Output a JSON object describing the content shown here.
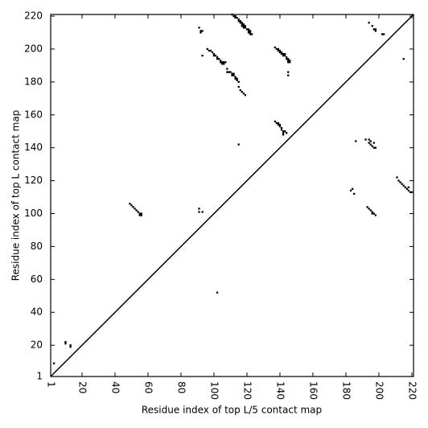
{
  "chart_data": {
    "type": "scatter",
    "xlabel": "Residue index of top L/5 contact map",
    "ylabel": "Residue index of top L contact map",
    "xlim": [
      1,
      221
    ],
    "ylim": [
      1,
      221
    ],
    "xticks": [
      1,
      20,
      40,
      60,
      80,
      100,
      120,
      140,
      160,
      180,
      200,
      220
    ],
    "yticks": [
      1,
      20,
      40,
      60,
      80,
      100,
      120,
      140,
      160,
      180,
      200,
      220
    ],
    "color": "#000000",
    "line": {
      "x": [
        1,
        221
      ],
      "y": [
        1,
        221
      ]
    },
    "points": {
      "x": [
        3,
        10,
        10,
        13,
        13,
        102,
        49,
        50,
        51,
        52,
        53,
        54,
        55,
        56,
        55,
        56,
        91,
        91,
        93,
        91,
        92,
        93,
        92,
        93,
        96,
        97,
        98,
        99,
        100,
        100,
        101,
        102,
        102,
        103,
        104,
        104,
        105,
        106,
        105,
        106,
        107,
        108,
        108,
        109,
        110,
        111,
        112,
        111,
        112,
        113,
        113,
        114,
        114,
        115,
        115,
        116,
        117,
        118,
        119,
        111,
        112,
        113,
        113,
        114,
        115,
        115,
        116,
        116,
        117,
        117,
        118,
        118,
        117,
        119,
        118,
        119,
        120,
        121,
        121,
        122,
        121,
        122,
        122,
        123,
        115,
        137,
        138,
        139,
        139,
        140,
        140,
        141,
        141,
        142,
        143,
        142,
        143,
        144,
        144,
        145,
        145,
        146,
        145,
        146,
        145,
        145,
        137,
        138,
        139,
        139,
        140,
        140,
        141,
        141,
        142,
        143,
        142,
        142,
        144,
        186,
        192,
        194,
        194,
        195,
        196,
        197,
        197,
        198,
        195,
        183,
        184,
        185,
        193,
        194,
        195,
        196,
        196,
        197,
        198,
        211,
        212,
        213,
        214,
        215,
        216,
        217,
        218,
        218,
        219,
        220,
        194,
        196,
        197,
        198,
        198,
        202,
        203,
        215
      ],
      "y": [
        9,
        21,
        22,
        19,
        20,
        52,
        106,
        105,
        104,
        103,
        102,
        101,
        100,
        100,
        99,
        99,
        103,
        101,
        101,
        213,
        211,
        211,
        210,
        196,
        200,
        199,
        199,
        198,
        197,
        196,
        196,
        195,
        194,
        194,
        193,
        192,
        192,
        192,
        191,
        191,
        192,
        188,
        186,
        186,
        186,
        185,
        185,
        184,
        184,
        183,
        182,
        182,
        181,
        180,
        177,
        175,
        174,
        173,
        172,
        221,
        220,
        220,
        219,
        219,
        218,
        217,
        217,
        216,
        216,
        215,
        215,
        214,
        214,
        214,
        213,
        213,
        212,
        212,
        211,
        211,
        210,
        210,
        209,
        209,
        142,
        201,
        200,
        200,
        199,
        199,
        198,
        198,
        197,
        197,
        197,
        196,
        196,
        195,
        194,
        194,
        193,
        193,
        192,
        192,
        186,
        184,
        156,
        155,
        155,
        154,
        154,
        153,
        152,
        151,
        150,
        150,
        149,
        148,
        149,
        144,
        145,
        145,
        143,
        142,
        141,
        143,
        140,
        140,
        144,
        114,
        115,
        112,
        104,
        103,
        102,
        101,
        100,
        100,
        99,
        122,
        120,
        119,
        118,
        117,
        116,
        115,
        116,
        114,
        113,
        113,
        216,
        214,
        212,
        212,
        211,
        209,
        209,
        194
      ]
    }
  }
}
